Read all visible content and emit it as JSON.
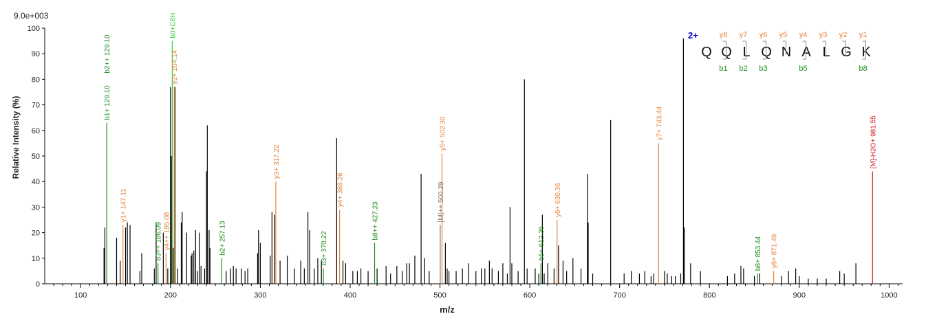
{
  "chart_data": {
    "type": "spectrum",
    "scale_label": "9.0e+003",
    "xlabel": "m/z",
    "ylabel": "Relative   Intensity (%)",
    "xlim": [
      60,
      1015
    ],
    "ylim": [
      0,
      100
    ],
    "x_ticks": [
      100,
      200,
      300,
      400,
      500,
      600,
      700,
      800,
      900,
      1000
    ],
    "y_ticks": [
      0,
      10,
      20,
      30,
      40,
      50,
      60,
      70,
      80,
      90,
      100
    ],
    "colors": {
      "b_ion": "#1a8f1a",
      "b_ion_light": "#33cc33",
      "y_ion": "#e8823a",
      "precursor": "#cc2222",
      "parent": "#777777",
      "unlabeled": "#000000",
      "charge": "#0000cc"
    },
    "peptide": {
      "charge": "2+",
      "sequence": [
        "Q",
        "Q",
        "L",
        "Q",
        "N",
        "A",
        "L",
        "G",
        "K"
      ],
      "y_labels": [
        "y8",
        "y7",
        "y6",
        "y5",
        "y4",
        "y3",
        "y2",
        "y1"
      ],
      "b_labels": [
        {
          "after_residue": 1,
          "label": "b1"
        },
        {
          "after_residue": 2,
          "label": "b2"
        },
        {
          "after_residue": 3,
          "label": "b3"
        },
        {
          "after_residue": 5,
          "label": "b5"
        },
        {
          "after_residue": 8,
          "label": "b8"
        }
      ]
    },
    "annotated_peaks": [
      {
        "mz": 129.1,
        "intensity": 63,
        "label": "b1+ 129.10",
        "ion": "b"
      },
      {
        "mz": 129.1,
        "intensity": 63,
        "label": "b2++ 129.10",
        "ion": "b",
        "stack": 1
      },
      {
        "mz": 147.11,
        "intensity": 23,
        "label": "y1+ 147.11",
        "ion": "y"
      },
      {
        "mz": 186.09,
        "intensity": 8,
        "label": "b3++ 186.09",
        "ion": "b"
      },
      {
        "mz": 195.08,
        "intensity": 12,
        "label": "y4++ 195.08",
        "ion": "y"
      },
      {
        "mz": 202.0,
        "intensity": 95,
        "label": "b0+C8H",
        "ion": "b_light"
      },
      {
        "mz": 204.14,
        "intensity": 77,
        "label": "y2+ 204.14",
        "ion": "y"
      },
      {
        "mz": 257.13,
        "intensity": 10,
        "label": "b2+ 257.13",
        "ion": "b"
      },
      {
        "mz": 317.22,
        "intensity": 40,
        "label": "y3+ 317.22",
        "ion": "y"
      },
      {
        "mz": 370.22,
        "intensity": 6,
        "label": "b3+ 370.22",
        "ion": "b"
      },
      {
        "mz": 388.26,
        "intensity": 29,
        "label": "y4+ 388.26",
        "ion": "y"
      },
      {
        "mz": 427.23,
        "intensity": 16,
        "label": "b8++ 427.23",
        "ion": "b"
      },
      {
        "mz": 500.29,
        "intensity": 23,
        "label": "[M]++ 500.29",
        "ion": "parent"
      },
      {
        "mz": 502.3,
        "intensity": 51,
        "label": "y5+ 502.30",
        "ion": "y"
      },
      {
        "mz": 612.36,
        "intensity": 8,
        "label": "b5+ 612.36",
        "ion": "b"
      },
      {
        "mz": 630.36,
        "intensity": 25,
        "label": "y6+ 630.36",
        "ion": "y"
      },
      {
        "mz": 743.44,
        "intensity": 55,
        "label": "y7+ 743.44",
        "ion": "y"
      },
      {
        "mz": 853.44,
        "intensity": 4,
        "label": "b8+ 853.44",
        "ion": "b"
      },
      {
        "mz": 871.49,
        "intensity": 5,
        "label": "y8+ 871.49",
        "ion": "y"
      },
      {
        "mz": 981.55,
        "intensity": 44,
        "label": "[M]-H2O+ 981.55",
        "ion": "precursor"
      }
    ],
    "unlabeled_peaks": [
      [
        126,
        14
      ],
      [
        127,
        22
      ],
      [
        140,
        18
      ],
      [
        144,
        9
      ],
      [
        150,
        22
      ],
      [
        152,
        24
      ],
      [
        155,
        23
      ],
      [
        166,
        5
      ],
      [
        168,
        12
      ],
      [
        182,
        6
      ],
      [
        184,
        24
      ],
      [
        192,
        20
      ],
      [
        197,
        6
      ],
      [
        200,
        77
      ],
      [
        201,
        50
      ],
      [
        203,
        14
      ],
      [
        205,
        77
      ],
      [
        208,
        6
      ],
      [
        212,
        24
      ],
      [
        213,
        28
      ],
      [
        218,
        20
      ],
      [
        223,
        11
      ],
      [
        224,
        12
      ],
      [
        226,
        13
      ],
      [
        228,
        21
      ],
      [
        230,
        5
      ],
      [
        232,
        20
      ],
      [
        234,
        7
      ],
      [
        238,
        6
      ],
      [
        240,
        44
      ],
      [
        241,
        62
      ],
      [
        243,
        21
      ],
      [
        244,
        14
      ],
      [
        262,
        5
      ],
      [
        267,
        6
      ],
      [
        270,
        7
      ],
      [
        273,
        6
      ],
      [
        279,
        6
      ],
      [
        283,
        5
      ],
      [
        286,
        6
      ],
      [
        297,
        12
      ],
      [
        298,
        21
      ],
      [
        300,
        16
      ],
      [
        311,
        11
      ],
      [
        313,
        28
      ],
      [
        316,
        27
      ],
      [
        322,
        9
      ],
      [
        330,
        11
      ],
      [
        338,
        6
      ],
      [
        345,
        9
      ],
      [
        349,
        6
      ],
      [
        353,
        28
      ],
      [
        355,
        21
      ],
      [
        360,
        6
      ],
      [
        364,
        10
      ],
      [
        368,
        9
      ],
      [
        385,
        57
      ],
      [
        392,
        9
      ],
      [
        395,
        8
      ],
      [
        403,
        5
      ],
      [
        408,
        5
      ],
      [
        412,
        6
      ],
      [
        420,
        5
      ],
      [
        430,
        6
      ],
      [
        440,
        7
      ],
      [
        445,
        4
      ],
      [
        452,
        7
      ],
      [
        458,
        5
      ],
      [
        463,
        8
      ],
      [
        466,
        8
      ],
      [
        472,
        11
      ],
      [
        479,
        43
      ],
      [
        483,
        10
      ],
      [
        488,
        5
      ],
      [
        506,
        16
      ],
      [
        508,
        6
      ],
      [
        510,
        5
      ],
      [
        518,
        5
      ],
      [
        525,
        6
      ],
      [
        532,
        8
      ],
      [
        540,
        5
      ],
      [
        546,
        6
      ],
      [
        550,
        6
      ],
      [
        555,
        9
      ],
      [
        558,
        6
      ],
      [
        565,
        5
      ],
      [
        570,
        8
      ],
      [
        575,
        4
      ],
      [
        578,
        30
      ],
      [
        580,
        8
      ],
      [
        587,
        5
      ],
      [
        594,
        80
      ],
      [
        597,
        6
      ],
      [
        606,
        6
      ],
      [
        610,
        4
      ],
      [
        614,
        27
      ],
      [
        616,
        4
      ],
      [
        620,
        8
      ],
      [
        627,
        6
      ],
      [
        632,
        15
      ],
      [
        637,
        9
      ],
      [
        641,
        5
      ],
      [
        648,
        10
      ],
      [
        657,
        6
      ],
      [
        664,
        43
      ],
      [
        665,
        24
      ],
      [
        670,
        4
      ],
      [
        690,
        64
      ],
      [
        705,
        4
      ],
      [
        713,
        5
      ],
      [
        722,
        4
      ],
      [
        728,
        5
      ],
      [
        735,
        3
      ],
      [
        738,
        4
      ],
      [
        750,
        5
      ],
      [
        753,
        4
      ],
      [
        758,
        3
      ],
      [
        762,
        3
      ],
      [
        768,
        4
      ],
      [
        771,
        96
      ],
      [
        772,
        22
      ],
      [
        779,
        8
      ],
      [
        790,
        5
      ],
      [
        820,
        3
      ],
      [
        828,
        4
      ],
      [
        835,
        7
      ],
      [
        838,
        6
      ],
      [
        850,
        3
      ],
      [
        856,
        4
      ],
      [
        880,
        3
      ],
      [
        888,
        5
      ],
      [
        896,
        6
      ],
      [
        900,
        3
      ],
      [
        910,
        2
      ],
      [
        920,
        2
      ],
      [
        930,
        2
      ],
      [
        945,
        5
      ],
      [
        950,
        4
      ],
      [
        963,
        8
      ]
    ]
  }
}
